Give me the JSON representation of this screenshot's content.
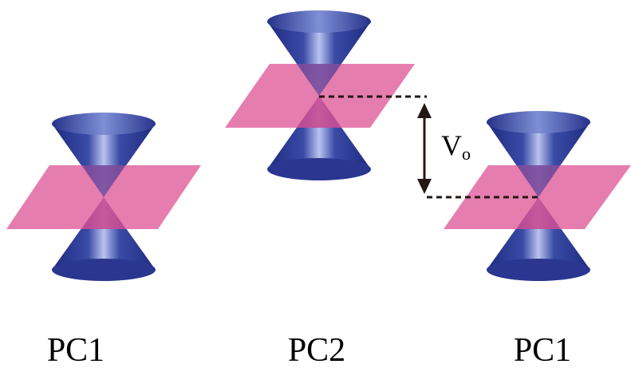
{
  "diagram": {
    "cones": [
      {
        "label": "PC1",
        "name": "left"
      },
      {
        "label": "PC2",
        "name": "middle"
      },
      {
        "label": "PC1",
        "name": "right"
      }
    ],
    "offset_label": {
      "main": "V",
      "subscript": "o"
    },
    "colors": {
      "cone_dark": "#1f2a80",
      "cone_mid": "#3a4ba6",
      "cone_light": "#b9c3ee",
      "plane": "#e0609e",
      "arrow": "#231815",
      "text": "#000000"
    }
  }
}
